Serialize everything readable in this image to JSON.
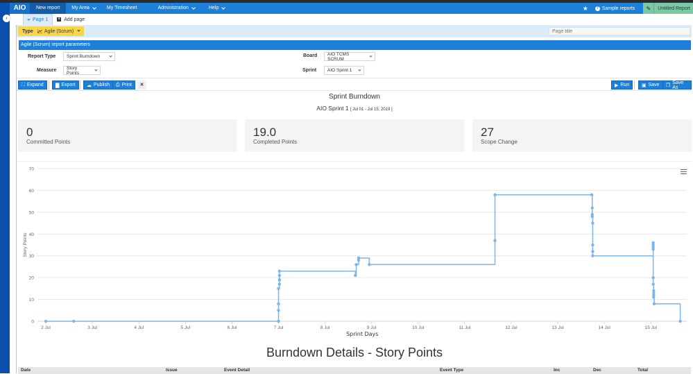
{
  "navbar": {
    "logo": "AIO",
    "items": [
      {
        "label": "New report",
        "active": true,
        "has_dropdown": false
      },
      {
        "label": "My Area",
        "active": false,
        "has_dropdown": true
      },
      {
        "label": "My Timesheet",
        "active": false,
        "has_dropdown": false
      },
      {
        "label": "Administration",
        "active": false,
        "has_dropdown": true
      },
      {
        "label": "Help",
        "active": false,
        "has_dropdown": true
      }
    ],
    "star_icon": "★",
    "sample_reports": "Sample reports",
    "report_name": "Untitled Report"
  },
  "tabs": {
    "page1": "Page 1",
    "add_page": "Add page"
  },
  "type_row": {
    "type_label": "Type",
    "type_value": "Agile (Scrum)",
    "page_title_placeholder": "Page title"
  },
  "params": {
    "header": "Agile (Scrum) report parameters",
    "report_type_label": "Report Type",
    "report_type_value": "Sprint Burndown",
    "measure_label": "Measure",
    "measure_value": "Story Points",
    "board_label": "Board",
    "board_value": "AIO TCMS SCRUM",
    "sprint_label": "Sprint",
    "sprint_value": "AIO Sprint 1"
  },
  "toolbar": {
    "expand": "Expand",
    "export": "Export",
    "publish": "Publish",
    "print": "Print",
    "close": "✕",
    "run": "Run",
    "save": "Save",
    "save_as": "Save As"
  },
  "report": {
    "title": "Sprint Burndown",
    "sprint_name": "AIO Sprint 1",
    "sprint_range": "[ Jul 01 - Jul 15, 2019 ]"
  },
  "kpis": [
    {
      "value": "0",
      "label": "Committed Points"
    },
    {
      "value": "19.0",
      "label": "Completed Points"
    },
    {
      "value": "27",
      "label": "Scope Change"
    }
  ],
  "details": {
    "title": "Burndown Details - Story Points",
    "columns": [
      "Date",
      "Issue",
      "Event Detail",
      "Event Type",
      "Inc",
      "Dec",
      "Total"
    ]
  },
  "colors": {
    "nav_blue": "#1e7fd8",
    "rail_blue": "#0a4fae",
    "type_yellow": "#f7d64a",
    "report_green": "#7dc9a6",
    "series": "#7cb5ec"
  },
  "chart_data": {
    "type": "line",
    "step": true,
    "title": "",
    "xlabel": "Sprint Days",
    "ylabel": "Story Points",
    "ylim": [
      0,
      70
    ],
    "yticks": [
      0,
      10,
      20,
      30,
      40,
      50,
      60,
      70
    ],
    "xticks": [
      "2 Jul",
      "3 Jul",
      "4 Jul",
      "5 Jul",
      "6 Jul",
      "7 Jul",
      "8 Jul",
      "9 Jul",
      "10 Jul",
      "11 Jul",
      "12 Jul",
      "13 Jul",
      "14 Jul",
      "15 Jul"
    ],
    "grid": true,
    "legend": false,
    "series": [
      {
        "name": "Story Points",
        "points": [
          {
            "x": 2.0,
            "y": 0
          },
          {
            "x": 2.6,
            "y": 0
          },
          {
            "x": 7.0,
            "y": 0
          },
          {
            "x": 7.0,
            "y": 5
          },
          {
            "x": 7.0,
            "y": 8
          },
          {
            "x": 7.0,
            "y": 15
          },
          {
            "x": 7.02,
            "y": 17
          },
          {
            "x": 7.02,
            "y": 19
          },
          {
            "x": 7.02,
            "y": 21
          },
          {
            "x": 7.02,
            "y": 23
          },
          {
            "x": 8.65,
            "y": 21
          },
          {
            "x": 8.67,
            "y": 26
          },
          {
            "x": 8.72,
            "y": 28
          },
          {
            "x": 8.72,
            "y": 29
          },
          {
            "x": 8.95,
            "y": 26
          },
          {
            "x": 11.65,
            "y": 37
          },
          {
            "x": 11.65,
            "y": 58
          },
          {
            "x": 13.73,
            "y": 58
          },
          {
            "x": 13.74,
            "y": 52
          },
          {
            "x": 13.74,
            "y": 49
          },
          {
            "x": 13.74,
            "y": 48
          },
          {
            "x": 13.75,
            "y": 45
          },
          {
            "x": 13.75,
            "y": 35
          },
          {
            "x": 13.75,
            "y": 32
          },
          {
            "x": 13.75,
            "y": 30
          },
          {
            "x": 15.05,
            "y": 36
          },
          {
            "x": 15.05,
            "y": 35
          },
          {
            "x": 15.05,
            "y": 34
          },
          {
            "x": 15.05,
            "y": 33
          },
          {
            "x": 15.05,
            "y": 20
          },
          {
            "x": 15.05,
            "y": 17
          },
          {
            "x": 15.06,
            "y": 14
          },
          {
            "x": 15.06,
            "y": 13
          },
          {
            "x": 15.06,
            "y": 12
          },
          {
            "x": 15.06,
            "y": 11
          },
          {
            "x": 15.07,
            "y": 8
          },
          {
            "x": 15.63,
            "y": 0
          }
        ]
      }
    ]
  }
}
